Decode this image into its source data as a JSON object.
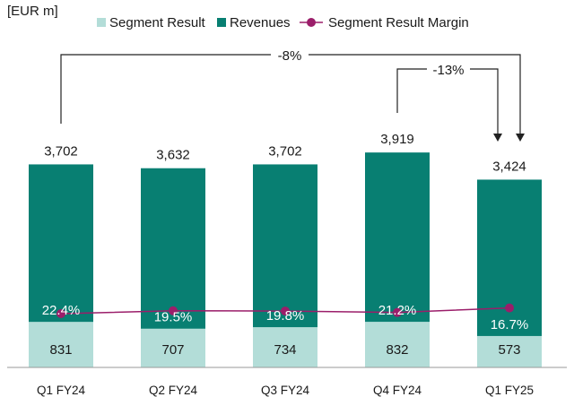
{
  "chart_data": {
    "type": "bar",
    "unit_label": "[EUR m]",
    "categories": [
      "Q1 FY24",
      "Q2 FY24",
      "Q3 FY24",
      "Q4 FY24",
      "Q1 FY25"
    ],
    "series": [
      {
        "name": "Segment Result",
        "values": [
          831,
          707,
          734,
          832,
          573
        ],
        "color": "#b3ddd8"
      },
      {
        "name": "Revenues",
        "values": [
          3702,
          3632,
          3702,
          3919,
          3424
        ],
        "color": "#087f72"
      },
      {
        "name": "Segment Result Margin",
        "values": [
          22.4,
          19.5,
          19.8,
          21.2,
          16.7
        ],
        "color": "#9b1e6a"
      }
    ],
    "revenue_labels": [
      "3,702",
      "3,632",
      "3,702",
      "3,919",
      "3,424"
    ],
    "result_labels": [
      "831",
      "707",
      "734",
      "832",
      "573"
    ],
    "margin_labels": [
      "22.4%",
      "19.5%",
      "19.8%",
      "21.2%",
      "16.7%"
    ],
    "annotations": [
      {
        "text": "-8%",
        "from": "Q1 FY24",
        "to": "Q1 FY25"
      },
      {
        "text": "-13%",
        "from": "Q4 FY24",
        "to": "Q1 FY25"
      }
    ],
    "ylim": [
      0,
      4500
    ],
    "legend_position": "top",
    "grid": false
  }
}
